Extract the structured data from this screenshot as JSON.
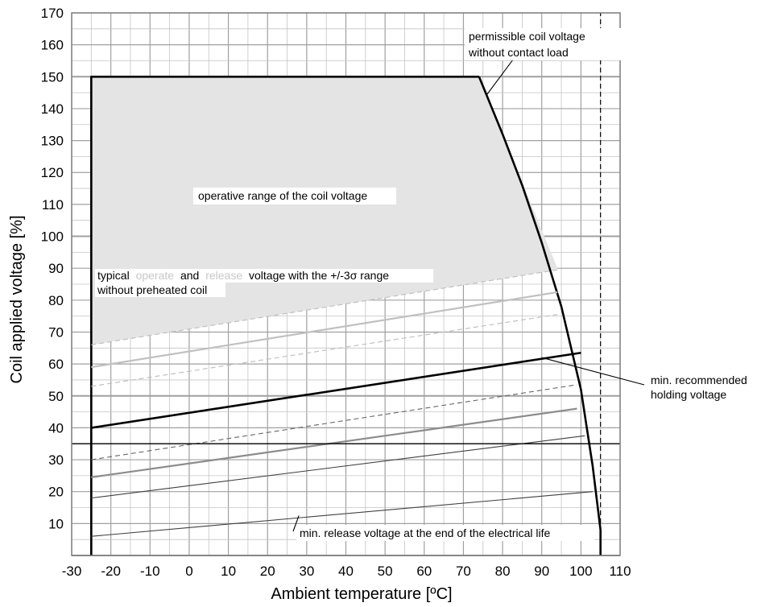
{
  "chart_data": {
    "type": "line",
    "xlabel": "Ambient temperature  [ºC]",
    "ylabel": "Coil applied voltage [%]",
    "xlim": [
      -30,
      110
    ],
    "ylim": [
      0,
      170
    ],
    "x_ticks": [
      "-30",
      "-20",
      "-10",
      "0",
      "10",
      "20",
      "30",
      "40",
      "50",
      "60",
      "70",
      "80",
      "90",
      "100",
      "110"
    ],
    "y_ticks": [
      "10",
      "20",
      "30",
      "40",
      "50",
      "60",
      "70",
      "80",
      "90",
      "100",
      "110",
      "120",
      "130",
      "140",
      "150",
      "160",
      "170"
    ],
    "grid": true,
    "operative_region": {
      "label": "operative range of the coil voltage",
      "polygon": [
        [
          -25,
          150
        ],
        [
          74,
          150
        ],
        [
          94,
          90
        ],
        [
          94,
          89.5
        ],
        [
          -25,
          66
        ],
        [
          -25,
          150
        ]
      ],
      "color": "#e4e4e4"
    },
    "series": [
      {
        "role": "boundary",
        "style": "solid-black-thick",
        "x": [
          -25,
          -25,
          74
        ],
        "y": [
          0,
          150,
          150
        ]
      },
      {
        "role": "permissible",
        "style": "solid-black-thick",
        "x": [
          74,
          80,
          85,
          90,
          95,
          100,
          103,
          105,
          105
        ],
        "y": [
          150,
          132,
          116,
          98,
          78,
          52,
          28,
          8,
          0
        ]
      },
      {
        "role": "operate-upper",
        "style": "dashed-light",
        "x": [
          -25,
          94
        ],
        "y": [
          66,
          89.5
        ]
      },
      {
        "role": "operate-typical",
        "style": "solid-light",
        "x": [
          -25,
          94
        ],
        "y": [
          59,
          82.5
        ]
      },
      {
        "role": "operate-lower",
        "style": "dashed-light",
        "x": [
          -25,
          94
        ],
        "y": [
          53,
          75.5
        ]
      },
      {
        "role": "holding",
        "style": "solid-black-thick",
        "x": [
          -25,
          100
        ],
        "y": [
          40,
          63.5
        ]
      },
      {
        "role": "release-upper",
        "style": "dashed-dark",
        "x": [
          -25,
          99
        ],
        "y": [
          30,
          53.5
        ]
      },
      {
        "role": "release-typical",
        "style": "solid-mid",
        "x": [
          -25,
          99
        ],
        "y": [
          24.5,
          46
        ]
      },
      {
        "role": "release-lower",
        "style": "solid-dark-thin",
        "x": [
          -25,
          101
        ],
        "y": [
          18,
          37.5
        ]
      },
      {
        "role": "end-of-life",
        "style": "solid-dark-thin",
        "x": [
          -25,
          103
        ],
        "y": [
          6,
          20
        ]
      },
      {
        "role": "reference-35",
        "style": "solid-black",
        "x": [
          -30,
          110
        ],
        "y": [
          35,
          35
        ]
      },
      {
        "role": "reference-105",
        "style": "dashed-black",
        "x": [
          105,
          105
        ],
        "y": [
          0,
          170
        ]
      }
    ],
    "annotations": {
      "permissible_line1": "permissible coil voltage",
      "permissible_line2": "without contact load",
      "typical_word": "typical",
      "operate_word": "operate",
      "and_word": "and",
      "release_word": "release",
      "sigma_rest": "voltage with the +/-3σ range",
      "preheated": "without preheated coil",
      "holding_line1": "min. recommended",
      "holding_line2": "holding voltage",
      "end_of_life": "min. release voltage at the end of the electrical life"
    },
    "colors": {
      "grid_major": "#a0a0a0",
      "grid_minor": "#c4c4c4",
      "region_fill": "#e4e4e4",
      "operate_lines": "#c0c0c0",
      "release_typical": "#8c8c8c",
      "dark_lines": "#404040"
    }
  }
}
